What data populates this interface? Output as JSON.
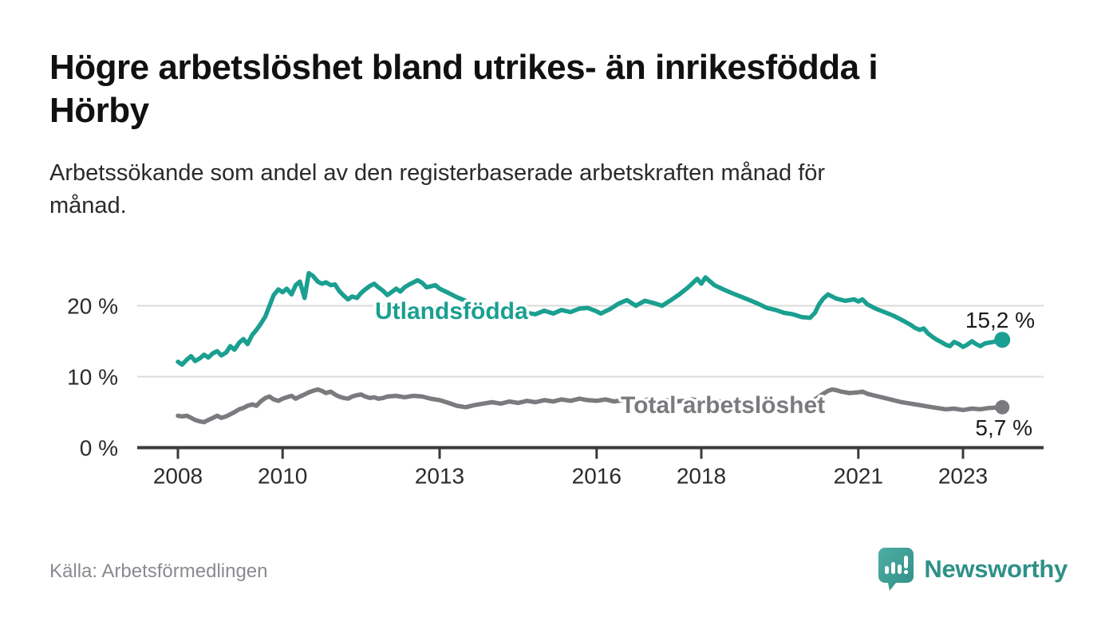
{
  "title": "Högre arbetslöshet bland utrikes- än inrikesfödda i Hörby",
  "title_lines": [
    "Högre arbetslöshet bland utrikes- än inrikesfödda i",
    "Hörby"
  ],
  "subtitle": "Arbetssökande som andel av den registerbaserade arbetskraften månad för månad.",
  "subtitle_lines": [
    "Arbetssökande som andel av den registerbaserade arbetskraften månad för",
    "månad."
  ],
  "source": "Källa: Arbetsförmedlingen",
  "branding": {
    "name": "Newsworthy",
    "icon": "bar-chart-speech-bubble-icon",
    "icon_color_top": "#4fada4",
    "icon_color_bottom": "#2f8f86",
    "text_color": "#2e9188"
  },
  "colors": {
    "background": "#ffffff",
    "foreign_born_line": "#1a9f90",
    "total_line": "#7a7b7f",
    "gridline": "#dbdbdb",
    "axis": "#3a3a3a",
    "tick_text": "#2b2b2b",
    "value_label_text": "#1b1b1b"
  },
  "chart_data": {
    "type": "line",
    "title": "Högre arbetslöshet bland utrikes- än inrikesfödda i Hörby",
    "xlabel": "",
    "ylabel": "Arbetssökande som andel av den registerbaserade arbetskraften (%)",
    "x_unit": "year (monthly observations)",
    "x_range": [
      2008.0,
      2023.75
    ],
    "ylim": [
      0,
      27
    ],
    "grid": "horizontal",
    "legend_position": "inline-labels",
    "x_ticks": [
      2008,
      2010,
      2013,
      2016,
      2018,
      2021,
      2023
    ],
    "y_ticks": [
      {
        "value": 0,
        "label": "0 %"
      },
      {
        "value": 10,
        "label": "10 %"
      },
      {
        "value": 20,
        "label": "20 %"
      }
    ],
    "series": [
      {
        "name": "Utlandsfödda",
        "color": "#1a9f90",
        "end_value": 15.2,
        "end_label": "15,2 %",
        "points": [
          [
            2008.0,
            12.1
          ],
          [
            2008.08,
            11.7
          ],
          [
            2008.17,
            12.4
          ],
          [
            2008.25,
            12.9
          ],
          [
            2008.33,
            12.2
          ],
          [
            2008.42,
            12.6
          ],
          [
            2008.5,
            13.1
          ],
          [
            2008.58,
            12.7
          ],
          [
            2008.67,
            13.3
          ],
          [
            2008.75,
            13.6
          ],
          [
            2008.83,
            13.0
          ],
          [
            2008.92,
            13.4
          ],
          [
            2009.0,
            14.3
          ],
          [
            2009.08,
            13.8
          ],
          [
            2009.17,
            14.8
          ],
          [
            2009.25,
            15.3
          ],
          [
            2009.33,
            14.6
          ],
          [
            2009.42,
            15.9
          ],
          [
            2009.5,
            16.6
          ],
          [
            2009.58,
            17.4
          ],
          [
            2009.67,
            18.5
          ],
          [
            2009.75,
            20.0
          ],
          [
            2009.83,
            21.5
          ],
          [
            2009.92,
            22.3
          ],
          [
            2010.0,
            21.9
          ],
          [
            2010.08,
            22.4
          ],
          [
            2010.17,
            21.6
          ],
          [
            2010.25,
            22.9
          ],
          [
            2010.33,
            23.4
          ],
          [
            2010.42,
            21.1
          ],
          [
            2010.5,
            24.6
          ],
          [
            2010.58,
            24.2
          ],
          [
            2010.67,
            23.4
          ],
          [
            2010.75,
            23.1
          ],
          [
            2010.83,
            23.3
          ],
          [
            2010.92,
            22.9
          ],
          [
            2011.0,
            23.0
          ],
          [
            2011.08,
            22.1
          ],
          [
            2011.17,
            21.4
          ],
          [
            2011.25,
            20.9
          ],
          [
            2011.33,
            21.3
          ],
          [
            2011.42,
            21.1
          ],
          [
            2011.5,
            21.8
          ],
          [
            2011.58,
            22.3
          ],
          [
            2011.67,
            22.8
          ],
          [
            2011.75,
            23.1
          ],
          [
            2011.83,
            22.6
          ],
          [
            2011.92,
            22.1
          ],
          [
            2012.0,
            21.5
          ],
          [
            2012.08,
            21.9
          ],
          [
            2012.17,
            22.4
          ],
          [
            2012.25,
            22.0
          ],
          [
            2012.33,
            22.6
          ],
          [
            2012.42,
            23.0
          ],
          [
            2012.58,
            23.6
          ],
          [
            2012.67,
            23.2
          ],
          [
            2012.75,
            22.6
          ],
          [
            2012.92,
            22.9
          ],
          [
            2013.0,
            22.4
          ],
          [
            2013.17,
            21.8
          ],
          [
            2013.33,
            21.2
          ],
          [
            2013.5,
            20.7
          ],
          [
            2013.67,
            20.1
          ],
          [
            2013.83,
            19.6
          ],
          [
            2014.0,
            19.2
          ],
          [
            2014.17,
            18.7
          ],
          [
            2014.33,
            19.1
          ],
          [
            2014.5,
            18.6
          ],
          [
            2014.67,
            19.0
          ],
          [
            2014.83,
            18.8
          ],
          [
            2015.0,
            19.3
          ],
          [
            2015.17,
            18.9
          ],
          [
            2015.33,
            19.4
          ],
          [
            2015.5,
            19.1
          ],
          [
            2015.67,
            19.6
          ],
          [
            2015.83,
            19.7
          ],
          [
            2016.0,
            19.2
          ],
          [
            2016.08,
            18.9
          ],
          [
            2016.25,
            19.5
          ],
          [
            2016.42,
            20.3
          ],
          [
            2016.58,
            20.8
          ],
          [
            2016.75,
            20.0
          ],
          [
            2016.92,
            20.7
          ],
          [
            2017.08,
            20.4
          ],
          [
            2017.25,
            20.0
          ],
          [
            2017.42,
            20.8
          ],
          [
            2017.58,
            21.6
          ],
          [
            2017.75,
            22.6
          ],
          [
            2017.92,
            23.8
          ],
          [
            2018.0,
            23.1
          ],
          [
            2018.08,
            24.0
          ],
          [
            2018.25,
            22.9
          ],
          [
            2018.42,
            22.3
          ],
          [
            2018.58,
            21.8
          ],
          [
            2018.75,
            21.3
          ],
          [
            2018.92,
            20.8
          ],
          [
            2019.08,
            20.3
          ],
          [
            2019.25,
            19.7
          ],
          [
            2019.42,
            19.4
          ],
          [
            2019.58,
            19.0
          ],
          [
            2019.75,
            18.8
          ],
          [
            2019.92,
            18.4
          ],
          [
            2020.08,
            18.3
          ],
          [
            2020.17,
            19.0
          ],
          [
            2020.25,
            20.2
          ],
          [
            2020.33,
            21.0
          ],
          [
            2020.42,
            21.6
          ],
          [
            2020.5,
            21.3
          ],
          [
            2020.58,
            21.0
          ],
          [
            2020.75,
            20.7
          ],
          [
            2020.92,
            20.9
          ],
          [
            2021.0,
            20.6
          ],
          [
            2021.08,
            20.9
          ],
          [
            2021.17,
            20.2
          ],
          [
            2021.33,
            19.6
          ],
          [
            2021.5,
            19.1
          ],
          [
            2021.67,
            18.6
          ],
          [
            2021.83,
            18.0
          ],
          [
            2022.0,
            17.3
          ],
          [
            2022.08,
            16.9
          ],
          [
            2022.17,
            16.6
          ],
          [
            2022.25,
            16.8
          ],
          [
            2022.33,
            16.1
          ],
          [
            2022.42,
            15.6
          ],
          [
            2022.5,
            15.2
          ],
          [
            2022.58,
            14.9
          ],
          [
            2022.67,
            14.5
          ],
          [
            2022.75,
            14.3
          ],
          [
            2022.83,
            14.9
          ],
          [
            2022.92,
            14.6
          ],
          [
            2023.0,
            14.2
          ],
          [
            2023.08,
            14.5
          ],
          [
            2023.17,
            15.0
          ],
          [
            2023.25,
            14.6
          ],
          [
            2023.33,
            14.3
          ],
          [
            2023.42,
            14.7
          ],
          [
            2023.58,
            14.9
          ],
          [
            2023.75,
            15.2
          ]
        ]
      },
      {
        "name": "Total arbetslöshet",
        "color": "#7a7b7f",
        "end_value": 5.7,
        "end_label": "5,7 %",
        "points": [
          [
            2008.0,
            4.5
          ],
          [
            2008.08,
            4.4
          ],
          [
            2008.17,
            4.5
          ],
          [
            2008.25,
            4.2
          ],
          [
            2008.33,
            3.9
          ],
          [
            2008.42,
            3.7
          ],
          [
            2008.5,
            3.6
          ],
          [
            2008.58,
            3.9
          ],
          [
            2008.67,
            4.2
          ],
          [
            2008.75,
            4.5
          ],
          [
            2008.83,
            4.2
          ],
          [
            2008.92,
            4.4
          ],
          [
            2009.0,
            4.7
          ],
          [
            2009.08,
            5.0
          ],
          [
            2009.17,
            5.4
          ],
          [
            2009.25,
            5.6
          ],
          [
            2009.33,
            5.9
          ],
          [
            2009.42,
            6.1
          ],
          [
            2009.5,
            5.9
          ],
          [
            2009.58,
            6.5
          ],
          [
            2009.67,
            7.0
          ],
          [
            2009.75,
            7.2
          ],
          [
            2009.83,
            6.8
          ],
          [
            2009.92,
            6.6
          ],
          [
            2010.0,
            6.9
          ],
          [
            2010.08,
            7.1
          ],
          [
            2010.17,
            7.3
          ],
          [
            2010.25,
            6.9
          ],
          [
            2010.33,
            7.2
          ],
          [
            2010.42,
            7.5
          ],
          [
            2010.5,
            7.8
          ],
          [
            2010.58,
            8.0
          ],
          [
            2010.67,
            8.2
          ],
          [
            2010.75,
            8.0
          ],
          [
            2010.83,
            7.7
          ],
          [
            2010.92,
            7.9
          ],
          [
            2011.0,
            7.5
          ],
          [
            2011.08,
            7.2
          ],
          [
            2011.17,
            7.0
          ],
          [
            2011.25,
            6.9
          ],
          [
            2011.33,
            7.2
          ],
          [
            2011.42,
            7.4
          ],
          [
            2011.5,
            7.5
          ],
          [
            2011.58,
            7.2
          ],
          [
            2011.67,
            7.0
          ],
          [
            2011.75,
            7.1
          ],
          [
            2011.83,
            6.9
          ],
          [
            2011.92,
            7.0
          ],
          [
            2012.0,
            7.2
          ],
          [
            2012.17,
            7.3
          ],
          [
            2012.33,
            7.1
          ],
          [
            2012.5,
            7.3
          ],
          [
            2012.67,
            7.2
          ],
          [
            2012.83,
            6.9
          ],
          [
            2013.0,
            6.7
          ],
          [
            2013.17,
            6.3
          ],
          [
            2013.33,
            5.9
          ],
          [
            2013.5,
            5.7
          ],
          [
            2013.67,
            6.0
          ],
          [
            2013.83,
            6.2
          ],
          [
            2014.0,
            6.4
          ],
          [
            2014.17,
            6.2
          ],
          [
            2014.33,
            6.5
          ],
          [
            2014.5,
            6.3
          ],
          [
            2014.67,
            6.6
          ],
          [
            2014.83,
            6.4
          ],
          [
            2015.0,
            6.7
          ],
          [
            2015.17,
            6.5
          ],
          [
            2015.33,
            6.8
          ],
          [
            2015.5,
            6.6
          ],
          [
            2015.67,
            6.9
          ],
          [
            2015.83,
            6.7
          ],
          [
            2016.0,
            6.6
          ],
          [
            2016.17,
            6.8
          ],
          [
            2016.33,
            6.5
          ],
          [
            2016.5,
            6.7
          ],
          [
            2016.67,
            6.5
          ],
          [
            2016.83,
            6.6
          ],
          [
            2017.0,
            6.8
          ],
          [
            2017.17,
            6.6
          ],
          [
            2017.33,
            6.7
          ],
          [
            2017.5,
            6.5
          ],
          [
            2017.67,
            6.6
          ],
          [
            2017.83,
            6.8
          ],
          [
            2018.0,
            6.6
          ],
          [
            2018.17,
            6.4
          ],
          [
            2018.33,
            6.5
          ],
          [
            2018.5,
            6.3
          ],
          [
            2018.67,
            6.4
          ],
          [
            2018.83,
            6.2
          ],
          [
            2019.0,
            6.3
          ],
          [
            2019.17,
            6.1
          ],
          [
            2019.33,
            6.2
          ],
          [
            2019.5,
            6.0
          ],
          [
            2019.67,
            6.1
          ],
          [
            2019.83,
            6.0
          ],
          [
            2020.0,
            6.2
          ],
          [
            2020.17,
            6.8
          ],
          [
            2020.33,
            7.6
          ],
          [
            2020.42,
            8.0
          ],
          [
            2020.5,
            8.2
          ],
          [
            2020.58,
            8.1
          ],
          [
            2020.67,
            7.9
          ],
          [
            2020.83,
            7.7
          ],
          [
            2021.0,
            7.8
          ],
          [
            2021.08,
            7.9
          ],
          [
            2021.17,
            7.6
          ],
          [
            2021.33,
            7.3
          ],
          [
            2021.5,
            7.0
          ],
          [
            2021.67,
            6.7
          ],
          [
            2021.83,
            6.4
          ],
          [
            2022.0,
            6.2
          ],
          [
            2022.17,
            6.0
          ],
          [
            2022.33,
            5.8
          ],
          [
            2022.5,
            5.6
          ],
          [
            2022.67,
            5.4
          ],
          [
            2022.83,
            5.5
          ],
          [
            2023.0,
            5.3
          ],
          [
            2023.17,
            5.5
          ],
          [
            2023.33,
            5.4
          ],
          [
            2023.5,
            5.6
          ],
          [
            2023.75,
            5.7
          ]
        ]
      }
    ]
  }
}
